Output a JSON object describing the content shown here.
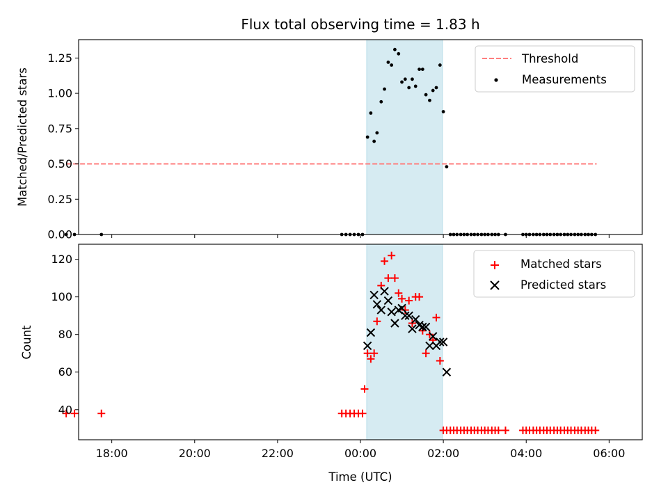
{
  "figure": {
    "title": "Flux total observing time = 1.83 h"
  },
  "colors": {
    "threshold": "#ff7f7f",
    "measurement": "#000000",
    "matched": "#ff0000",
    "predicted": "#000000",
    "span": "#add8e6"
  },
  "chart_data": [
    {
      "type": "scatter",
      "title": "Flux total observing time = 1.83 h",
      "xlabel": "",
      "ylabel": "Matched/Predicted stars",
      "x_unit": "hours relative to 00:00 UTC",
      "xlim": [
        -6.8,
        6.8
      ],
      "ylim": [
        0,
        1.38
      ],
      "yticks": [
        0.0,
        0.25,
        0.5,
        0.75,
        1.0,
        1.25
      ],
      "ytick_labels": [
        "0.00",
        "0.25",
        "0.50",
        "0.75",
        "1.00",
        "1.25"
      ],
      "shaded_span": [
        0.15,
        1.98
      ],
      "legend_position": "upper right",
      "legend": [
        "Threshold",
        "Measurements"
      ],
      "threshold": {
        "name": "Threshold",
        "y": 0.5,
        "x_range": [
          -7.1,
          5.7
        ],
        "style": "dashed"
      },
      "series": [
        {
          "name": "Measurements",
          "marker": "dot",
          "x": [
            -7.1,
            -6.9,
            -6.25,
            -0.45,
            -0.35,
            -0.25,
            -0.15,
            -0.05,
            0.05,
            0.17,
            0.25,
            0.33,
            0.4,
            0.5,
            0.58,
            0.67,
            0.75,
            0.83,
            0.92,
            1.0,
            1.08,
            1.17,
            1.25,
            1.33,
            1.42,
            1.5,
            1.58,
            1.67,
            1.75,
            1.83,
            1.92,
            2.0,
            2.08,
            2.17,
            2.25,
            2.33,
            2.42,
            2.5,
            2.58,
            2.67,
            2.75,
            2.83,
            2.92,
            3.0,
            3.08,
            3.17,
            3.25,
            3.33,
            3.5,
            3.92,
            4.0,
            4.08,
            4.17,
            4.25,
            4.33,
            4.42,
            4.5,
            4.58,
            4.67,
            4.75,
            4.83,
            4.92,
            5.0,
            5.08,
            5.17,
            5.25,
            5.33,
            5.42,
            5.5,
            5.58,
            5.67
          ],
          "y": [
            0.0,
            0.0,
            0.0,
            0.0,
            0.0,
            0.0,
            0.0,
            0.0,
            0.0,
            0.69,
            0.86,
            0.66,
            0.72,
            0.94,
            1.03,
            1.22,
            1.2,
            1.31,
            1.28,
            1.08,
            1.1,
            1.04,
            1.1,
            1.05,
            1.17,
            1.17,
            0.99,
            0.95,
            1.02,
            1.04,
            1.2,
            0.87,
            0.48,
            0.0,
            0.0,
            0.0,
            0.0,
            0.0,
            0.0,
            0.0,
            0.0,
            0.0,
            0.0,
            0.0,
            0.0,
            0.0,
            0.0,
            0.0,
            0.0,
            0.0,
            0.0,
            0.0,
            0.0,
            0.0,
            0.0,
            0.0,
            0.0,
            0.0,
            0.0,
            0.0,
            0.0,
            0.0,
            0.0,
            0.0,
            0.0,
            0.0,
            0.0,
            0.0,
            0.0,
            0.0,
            0.0
          ]
        }
      ]
    },
    {
      "type": "scatter",
      "title": "",
      "xlabel": "Time (UTC)",
      "ylabel": "Count",
      "x_unit": "hours relative to 00:00 UTC",
      "xlim": [
        -6.8,
        6.8
      ],
      "ylim": [
        24,
        128
      ],
      "yticks": [
        40,
        60,
        80,
        100,
        120
      ],
      "ytick_labels": [
        "40",
        "60",
        "80",
        "100",
        "120"
      ],
      "xticks": [
        -6,
        -4,
        -2,
        0,
        2,
        4,
        6
      ],
      "xtick_labels": [
        "18:00",
        "20:00",
        "22:00",
        "00:00",
        "02:00",
        "04:00",
        "06:00"
      ],
      "shaded_span": [
        0.15,
        1.98
      ],
      "legend_position": "upper right",
      "legend": [
        "Matched stars",
        "Predicted stars"
      ],
      "series": [
        {
          "name": "Matched stars",
          "marker": "plus",
          "x": [
            -7.1,
            -6.9,
            -6.25,
            -0.45,
            -0.35,
            -0.25,
            -0.15,
            -0.05,
            0.05,
            0.1,
            0.17,
            0.25,
            0.33,
            0.4,
            0.5,
            0.58,
            0.67,
            0.75,
            0.83,
            0.92,
            1.0,
            1.08,
            1.17,
            1.25,
            1.33,
            1.42,
            1.5,
            1.58,
            1.67,
            1.75,
            1.83,
            1.92,
            2.0,
            2.08,
            2.17,
            2.25,
            2.33,
            2.42,
            2.5,
            2.58,
            2.67,
            2.75,
            2.83,
            2.92,
            3.0,
            3.08,
            3.17,
            3.25,
            3.33,
            3.5,
            3.92,
            4.0,
            4.08,
            4.17,
            4.25,
            4.33,
            4.42,
            4.5,
            4.58,
            4.67,
            4.75,
            4.83,
            4.92,
            5.0,
            5.08,
            5.17,
            5.25,
            5.33,
            5.42,
            5.5,
            5.58,
            5.67
          ],
          "y": [
            38,
            38,
            38,
            38,
            38,
            38,
            38,
            38,
            38,
            51,
            70,
            67,
            70,
            87,
            106,
            119,
            110,
            122,
            110,
            102,
            99,
            93,
            98,
            86,
            100,
            100,
            82,
            70,
            80,
            77,
            89,
            66,
            29,
            29,
            29,
            29,
            29,
            29,
            29,
            29,
            29,
            29,
            29,
            29,
            29,
            29,
            29,
            29,
            29,
            29,
            29,
            29,
            29,
            29,
            29,
            29,
            29,
            29,
            29,
            29,
            29,
            29,
            29,
            29,
            29,
            29,
            29,
            29,
            29,
            29,
            29,
            29
          ]
        },
        {
          "name": "Predicted stars",
          "marker": "x",
          "x": [
            0.17,
            0.25,
            0.33,
            0.4,
            0.5,
            0.58,
            0.67,
            0.75,
            0.83,
            0.92,
            1.0,
            1.08,
            1.17,
            1.25,
            1.33,
            1.42,
            1.5,
            1.58,
            1.67,
            1.75,
            1.83,
            1.92,
            2.0,
            2.08
          ],
          "y": [
            74,
            81,
            101,
            96,
            93,
            103,
            98,
            92,
            86,
            93,
            94,
            90,
            90,
            83,
            88,
            85,
            84,
            84,
            74,
            79,
            74,
            76,
            76,
            60
          ]
        }
      ]
    }
  ]
}
